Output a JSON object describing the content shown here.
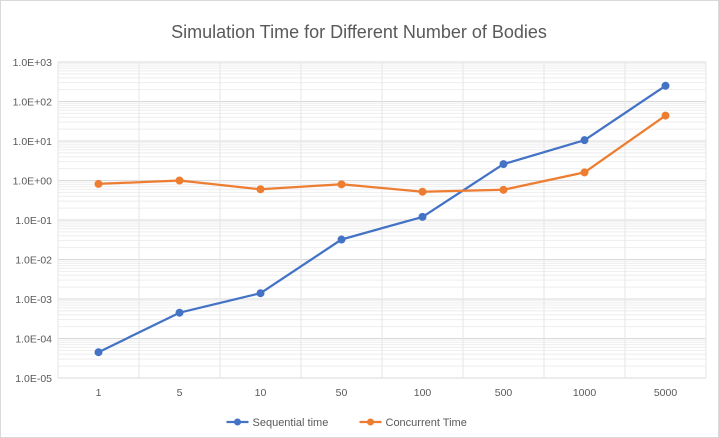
{
  "chart_data": {
    "type": "line",
    "title": "Simulation Time for Different Number of Bodies",
    "categories": [
      "1",
      "5",
      "10",
      "50",
      "100",
      "500",
      "1000",
      "5000"
    ],
    "y_scale": "log",
    "ylim": [
      1e-05,
      1000
    ],
    "y_tick_labels": [
      "1.0E+03",
      "1.0E+02",
      "1.0E+01",
      "1.0E+00",
      "1.0E-01",
      "1.0E-02",
      "1.0E-03",
      "1.0E-04",
      "1.0E-05"
    ],
    "grid": true,
    "minor_grid": true,
    "legend_position": "bottom",
    "series": [
      {
        "name": "Sequential time",
        "color": "#4472C4",
        "values": [
          4.5e-05,
          0.00045,
          0.0014,
          0.032,
          0.12,
          2.6,
          10.5,
          250
        ]
      },
      {
        "name": "Concurrent Time",
        "color": "#ED7D31",
        "values": [
          0.82,
          1.0,
          0.6,
          0.8,
          0.52,
          0.58,
          1.6,
          44
        ]
      }
    ]
  }
}
